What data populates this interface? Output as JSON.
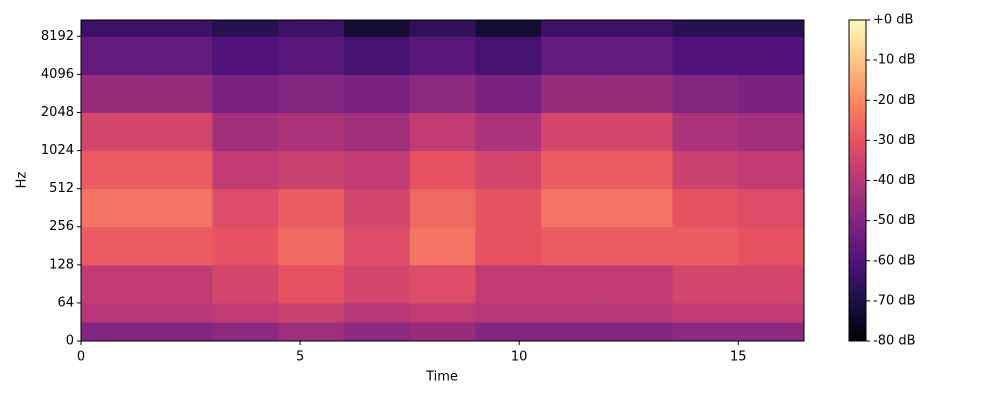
{
  "chart_data": {
    "type": "spectrogram",
    "x_label": "Time",
    "y_label": "Hz",
    "xbins": [
      0,
      1.5,
      3,
      4.5,
      6,
      7.5,
      9,
      10.5,
      12,
      13.5,
      15,
      16.5
    ],
    "ybins": [
      0,
      32,
      64,
      128,
      256,
      512,
      1024,
      2048,
      4096,
      8192,
      11025
    ],
    "z": [
      [
        -50,
        -50,
        -48,
        -45,
        -48,
        -46,
        -50,
        -50,
        -50,
        -48,
        -48
      ],
      [
        -40,
        -40,
        -38,
        -36,
        -40,
        -38,
        -40,
        -40,
        -40,
        -38,
        -38
      ],
      [
        -38,
        -38,
        -34,
        -30,
        -34,
        -32,
        -38,
        -38,
        -38,
        -34,
        -34
      ],
      [
        -28,
        -28,
        -30,
        -26,
        -32,
        -24,
        -30,
        -28,
        -28,
        -28,
        -30
      ],
      [
        -24,
        -24,
        -32,
        -28,
        -34,
        -26,
        -30,
        -24,
        -24,
        -30,
        -32
      ],
      [
        -28,
        -28,
        -38,
        -36,
        -38,
        -30,
        -34,
        -28,
        -28,
        -36,
        -38
      ],
      [
        -34,
        -34,
        -44,
        -42,
        -44,
        -38,
        -42,
        -34,
        -34,
        -42,
        -44
      ],
      [
        -46,
        -46,
        -52,
        -50,
        -52,
        -48,
        -52,
        -46,
        -46,
        -50,
        -52
      ],
      [
        -56,
        -56,
        -60,
        -58,
        -62,
        -58,
        -62,
        -56,
        -56,
        -60,
        -60
      ],
      [
        -64,
        -64,
        -68,
        -64,
        -72,
        -66,
        -72,
        -64,
        -64,
        -68,
        -68
      ]
    ],
    "xlim": [
      0,
      16.5
    ],
    "xticks": [
      0,
      5,
      10,
      15
    ],
    "ylim": [
      0,
      11025
    ],
    "yticks": [
      0,
      64,
      128,
      256,
      512,
      1024,
      2048,
      4096,
      8192
    ],
    "y_scale": "symlog",
    "colormap": "magma",
    "clim": [
      -80,
      0
    ],
    "cticks": [
      {
        "value": 0,
        "label": "+0 dB"
      },
      {
        "value": -10,
        "label": "-10 dB"
      },
      {
        "value": -20,
        "label": "-20 dB"
      },
      {
        "value": -30,
        "label": "-30 dB"
      },
      {
        "value": -40,
        "label": "-40 dB"
      },
      {
        "value": -50,
        "label": "-50 dB"
      },
      {
        "value": -60,
        "label": "-60 dB"
      },
      {
        "value": -70,
        "label": "-70 dB"
      },
      {
        "value": -80,
        "label": "-80 dB"
      }
    ]
  }
}
